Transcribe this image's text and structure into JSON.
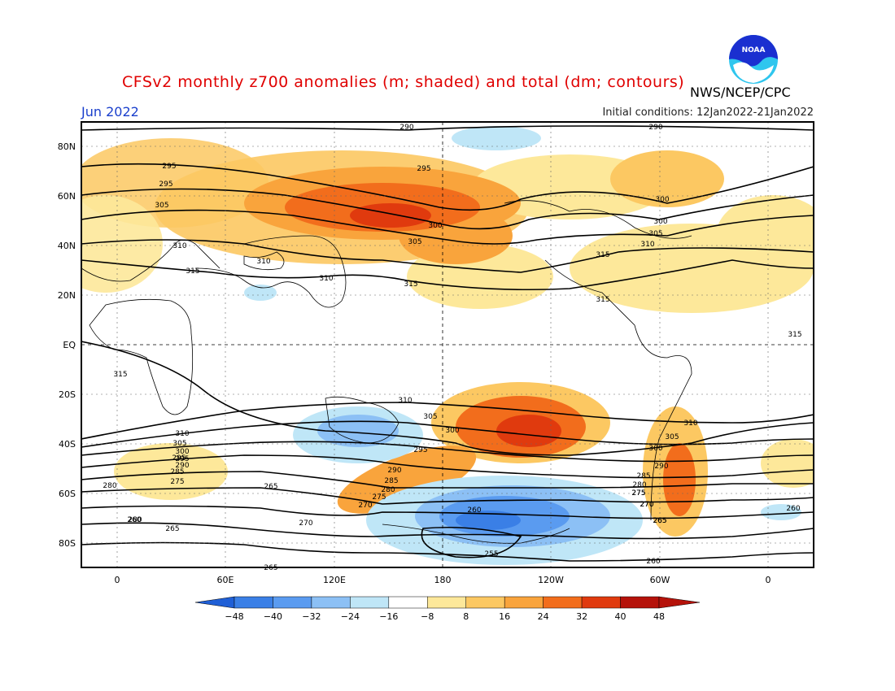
{
  "title": "CFSv2 monthly z700 anomalies (m; shaded) and total (dm; contours)",
  "agency": "NWS/NCEP/CPC",
  "logo_text": "NOAA",
  "month": "Jun 2022",
  "initial_conditions": "Initial conditions: 12Jan2022-21Jan2022",
  "chart_data": {
    "type": "heatmap",
    "lat_labels": [
      "80N",
      "60N",
      "40N",
      "20N",
      "EQ",
      "20S",
      "40S",
      "60S",
      "80S"
    ],
    "lon_labels": [
      "0",
      "60E",
      "120E",
      "180",
      "120W",
      "60W",
      "0"
    ],
    "colorbar": {
      "ticks": [
        "-48",
        "-40",
        "-32",
        "-24",
        "-16",
        "-8",
        "8",
        "16",
        "24",
        "32",
        "40",
        "48"
      ],
      "colors": [
        "#1f5fd6",
        "#3a7fe6",
        "#5a9bf0",
        "#8cc0f5",
        "#bfe6f7",
        "#ffffff",
        "#fde89a",
        "#fcc862",
        "#f9a43c",
        "#f26d1c",
        "#e03a0e",
        "#b5120a"
      ]
    },
    "contour_labels": [
      "290",
      "290",
      "295",
      "295",
      "295",
      "300",
      "300",
      "300",
      "305",
      "305",
      "305",
      "310",
      "310",
      "310",
      "315",
      "315",
      "315",
      "315",
      "315",
      "315",
      "310",
      "310",
      "305",
      "305",
      "300",
      "300",
      "295",
      "295",
      "290",
      "290",
      "285",
      "285",
      "280",
      "280",
      "275",
      "275",
      "270",
      "270",
      "265",
      "265",
      "260",
      "260",
      "255",
      "260",
      "260",
      "265",
      "270",
      "280",
      "275",
      "265",
      "310",
      "300",
      "305",
      "310",
      "295",
      "290",
      "285",
      "280",
      "275",
      "270",
      "265"
    ]
  }
}
